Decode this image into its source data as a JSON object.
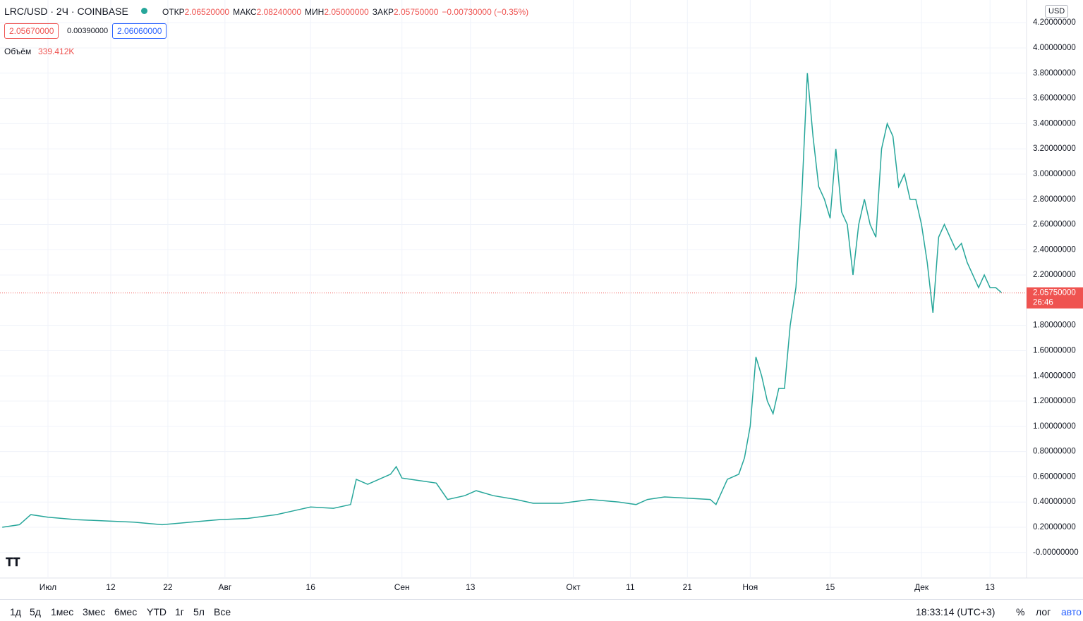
{
  "header": {
    "symbol": "LRC/USD · 2Ч · COINBASE",
    "stats": [
      {
        "label": "ОТКР",
        "value": "2.06520000"
      },
      {
        "label": "МАКС",
        "value": "2.08240000"
      },
      {
        "label": "МИН",
        "value": "2.05000000"
      },
      {
        "label": "ЗАКР",
        "value": "2.05750000"
      }
    ],
    "change": "−0.00730000 (−0.35%)"
  },
  "quote": {
    "bid": "2.05670000",
    "spread": "0.00390000",
    "ask": "2.06060000"
  },
  "volume": {
    "label": "Объём",
    "value": "339.412K"
  },
  "currency": "USD",
  "chart_data": {
    "type": "line",
    "x": [
      -8,
      -5,
      -3,
      0,
      5,
      10,
      15,
      20,
      25,
      30,
      35,
      40,
      43,
      46,
      50,
      53,
      54,
      56,
      60,
      61,
      62,
      65,
      68,
      70,
      73,
      75,
      78,
      82,
      85,
      90,
      95,
      100,
      103,
      105,
      108,
      112,
      116,
      117,
      119,
      121,
      122,
      123,
      124,
      125,
      126,
      127,
      128,
      129,
      130,
      131,
      132,
      133,
      134,
      135,
      136,
      137,
      138,
      139,
      140,
      141,
      142,
      143,
      144,
      145,
      146,
      147,
      148,
      149,
      150,
      151,
      152,
      153,
      154,
      155,
      156,
      157,
      158,
      159,
      160,
      161,
      162,
      163,
      164,
      165,
      166,
      167
    ],
    "values": [
      0.2,
      0.22,
      0.3,
      0.28,
      0.26,
      0.25,
      0.24,
      0.22,
      0.24,
      0.26,
      0.27,
      0.3,
      0.33,
      0.36,
      0.35,
      0.38,
      0.58,
      0.54,
      0.62,
      0.68,
      0.59,
      0.57,
      0.55,
      0.42,
      0.45,
      0.49,
      0.45,
      0.42,
      0.39,
      0.39,
      0.42,
      0.4,
      0.38,
      0.42,
      0.44,
      0.43,
      0.42,
      0.38,
      0.58,
      0.62,
      0.75,
      1.0,
      1.55,
      1.4,
      1.2,
      1.1,
      1.3,
      1.3,
      1.8,
      2.1,
      2.8,
      3.8,
      3.3,
      2.9,
      2.8,
      2.65,
      3.2,
      2.7,
      2.6,
      2.2,
      2.6,
      2.8,
      2.6,
      2.5,
      3.2,
      3.4,
      3.3,
      2.9,
      3.0,
      2.8,
      2.8,
      2.6,
      2.3,
      1.9,
      2.5,
      2.6,
      2.5,
      2.4,
      2.45,
      2.3,
      2.2,
      2.1,
      2.2,
      2.1,
      2.1,
      2.06
    ],
    "color": "#26a69a",
    "xlim": [
      -8.4,
      171.4
    ],
    "ylim": [
      -0.2025,
      4.38
    ],
    "xticks": [
      {
        "value": 0,
        "label": "Июл"
      },
      {
        "value": 11,
        "label": "12"
      },
      {
        "value": 21,
        "label": "22"
      },
      {
        "value": 31,
        "label": "Авг"
      },
      {
        "value": 46,
        "label": "16"
      },
      {
        "value": 62,
        "label": "Сен"
      },
      {
        "value": 74,
        "label": "13"
      },
      {
        "value": 92,
        "label": "Окт"
      },
      {
        "value": 102,
        "label": "11"
      },
      {
        "value": 112,
        "label": "21"
      },
      {
        "value": 123,
        "label": "Ноя"
      },
      {
        "value": 137,
        "label": "15"
      },
      {
        "value": 153,
        "label": "Дек"
      },
      {
        "value": 165,
        "label": "13"
      }
    ],
    "yticks": [
      {
        "value": 4.2,
        "label": "4.20000000"
      },
      {
        "value": 4.0,
        "label": "4.00000000"
      },
      {
        "value": 3.8,
        "label": "3.80000000"
      },
      {
        "value": 3.6,
        "label": "3.60000000"
      },
      {
        "value": 3.4,
        "label": "3.40000000"
      },
      {
        "value": 3.2,
        "label": "3.20000000"
      },
      {
        "value": 3.0,
        "label": "3.00000000"
      },
      {
        "value": 2.8,
        "label": "2.80000000"
      },
      {
        "value": 2.6,
        "label": "2.60000000"
      },
      {
        "value": 2.4,
        "label": "2.40000000"
      },
      {
        "value": 2.2,
        "label": "2.20000000"
      },
      {
        "value": 1.8,
        "label": "1.80000000"
      },
      {
        "value": 1.6,
        "label": "1.60000000"
      },
      {
        "value": 1.4,
        "label": "1.40000000"
      },
      {
        "value": 1.2,
        "label": "1.20000000"
      },
      {
        "value": 1.0,
        "label": "1.00000000"
      },
      {
        "value": 0.8,
        "label": "0.80000000"
      },
      {
        "value": 0.6,
        "label": "0.60000000"
      },
      {
        "value": 0.4,
        "label": "0.40000000"
      },
      {
        "value": 0.2,
        "label": "0.20000000"
      },
      {
        "value": 0,
        "label": "-0.00000000"
      }
    ],
    "grid": true,
    "last_price": {
      "value": 2.0575,
      "label": "2.05750000"
    },
    "countdown": "26:46"
  },
  "toolbar": {
    "ranges": [
      "1д",
      "5д",
      "1мес",
      "3мес",
      "6мес",
      "YTD",
      "1г",
      "5л",
      "Все"
    ],
    "clock": "18:33:14 (UTC+3)",
    "options": [
      "%",
      "лог",
      "авто"
    ]
  }
}
